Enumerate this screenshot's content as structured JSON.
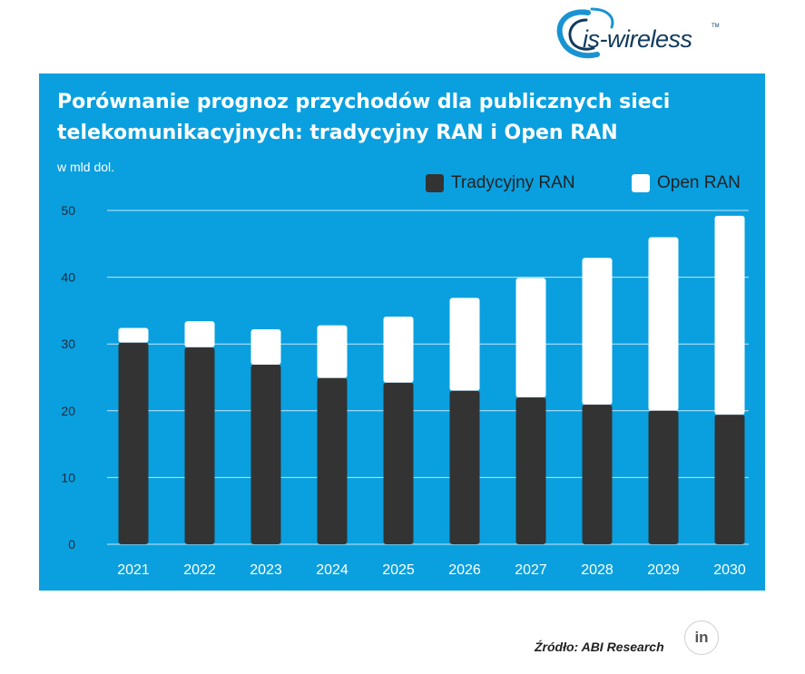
{
  "logo": {
    "text": "is-wireless",
    "tm": "TM"
  },
  "source": "Źródło: ABI Research",
  "linkedin": "in",
  "colors": {
    "panel": "#0aa0df",
    "traditional": "#333333",
    "open": "#ffffff",
    "grid": "#ffffff"
  },
  "chart_data": {
    "type": "bar",
    "stacked": true,
    "title": "Porównanie prognoz przychodów dla publicznych sieci telekomunikacyjnych: tradycyjny RAN i Open RAN",
    "unit": "w mld dol.",
    "categories": [
      "2021",
      "2022",
      "2023",
      "2024",
      "2025",
      "2026",
      "2027",
      "2028",
      "2029",
      "2030"
    ],
    "series": [
      {
        "name": "Tradycyjny RAN",
        "values": [
          30.2,
          29.5,
          26.9,
          24.9,
          24.2,
          23.0,
          22.0,
          20.9,
          20.0,
          19.4
        ]
      },
      {
        "name": "Open RAN",
        "values": [
          2.2,
          3.9,
          5.3,
          7.9,
          9.9,
          13.9,
          17.9,
          22.0,
          26.0,
          29.8
        ]
      }
    ],
    "yticks": [
      0,
      10,
      20,
      30,
      40,
      50
    ],
    "ylim": [
      0,
      50
    ],
    "grid": true,
    "legend_position": "top-right"
  }
}
